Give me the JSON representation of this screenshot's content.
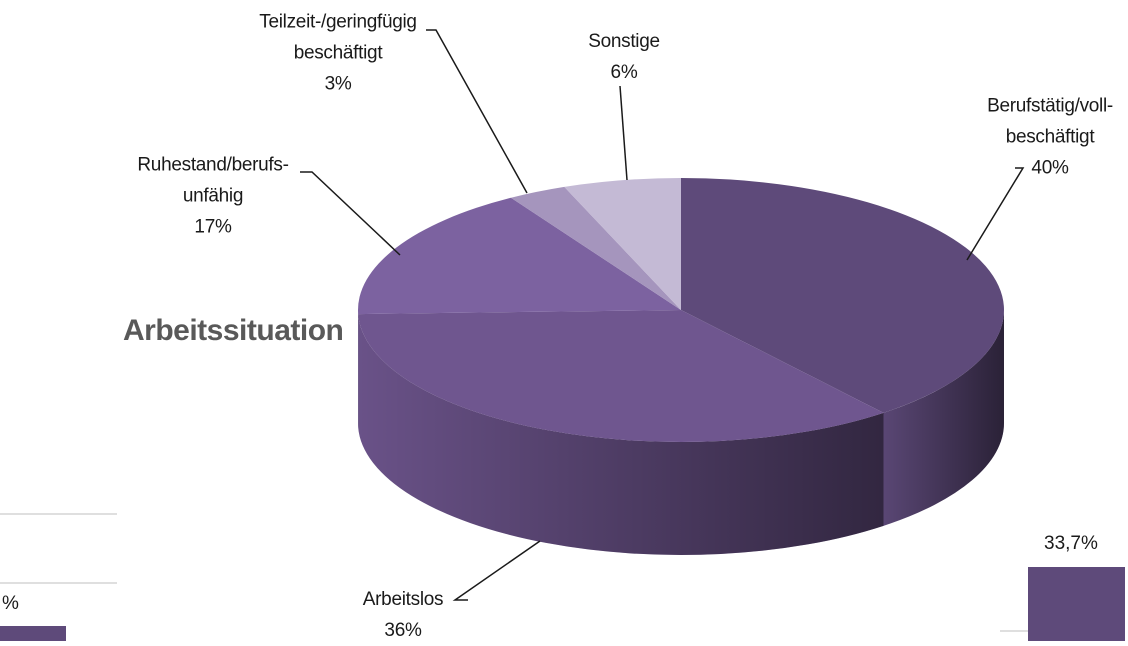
{
  "chart_data": {
    "type": "pie",
    "title": "Arbeitssituation",
    "categories": [
      "Berufstätig/voll-\nbeschäftigt",
      "Arbeitslos",
      "Ruhestand/berufs-\nunfähig",
      "Teilzeit-/geringfügig\nbeschäftigt",
      "Sonstige"
    ],
    "values": [
      40,
      36,
      17,
      3,
      6
    ],
    "value_labels": [
      "40%",
      "36%",
      "17%",
      "3%",
      "6%"
    ],
    "colors": [
      "#5e4a7a",
      "#6f568f",
      "#7c62a0",
      "#a595bd",
      "#c4bad5"
    ]
  },
  "fragments": [
    "33,7%",
    "%"
  ]
}
